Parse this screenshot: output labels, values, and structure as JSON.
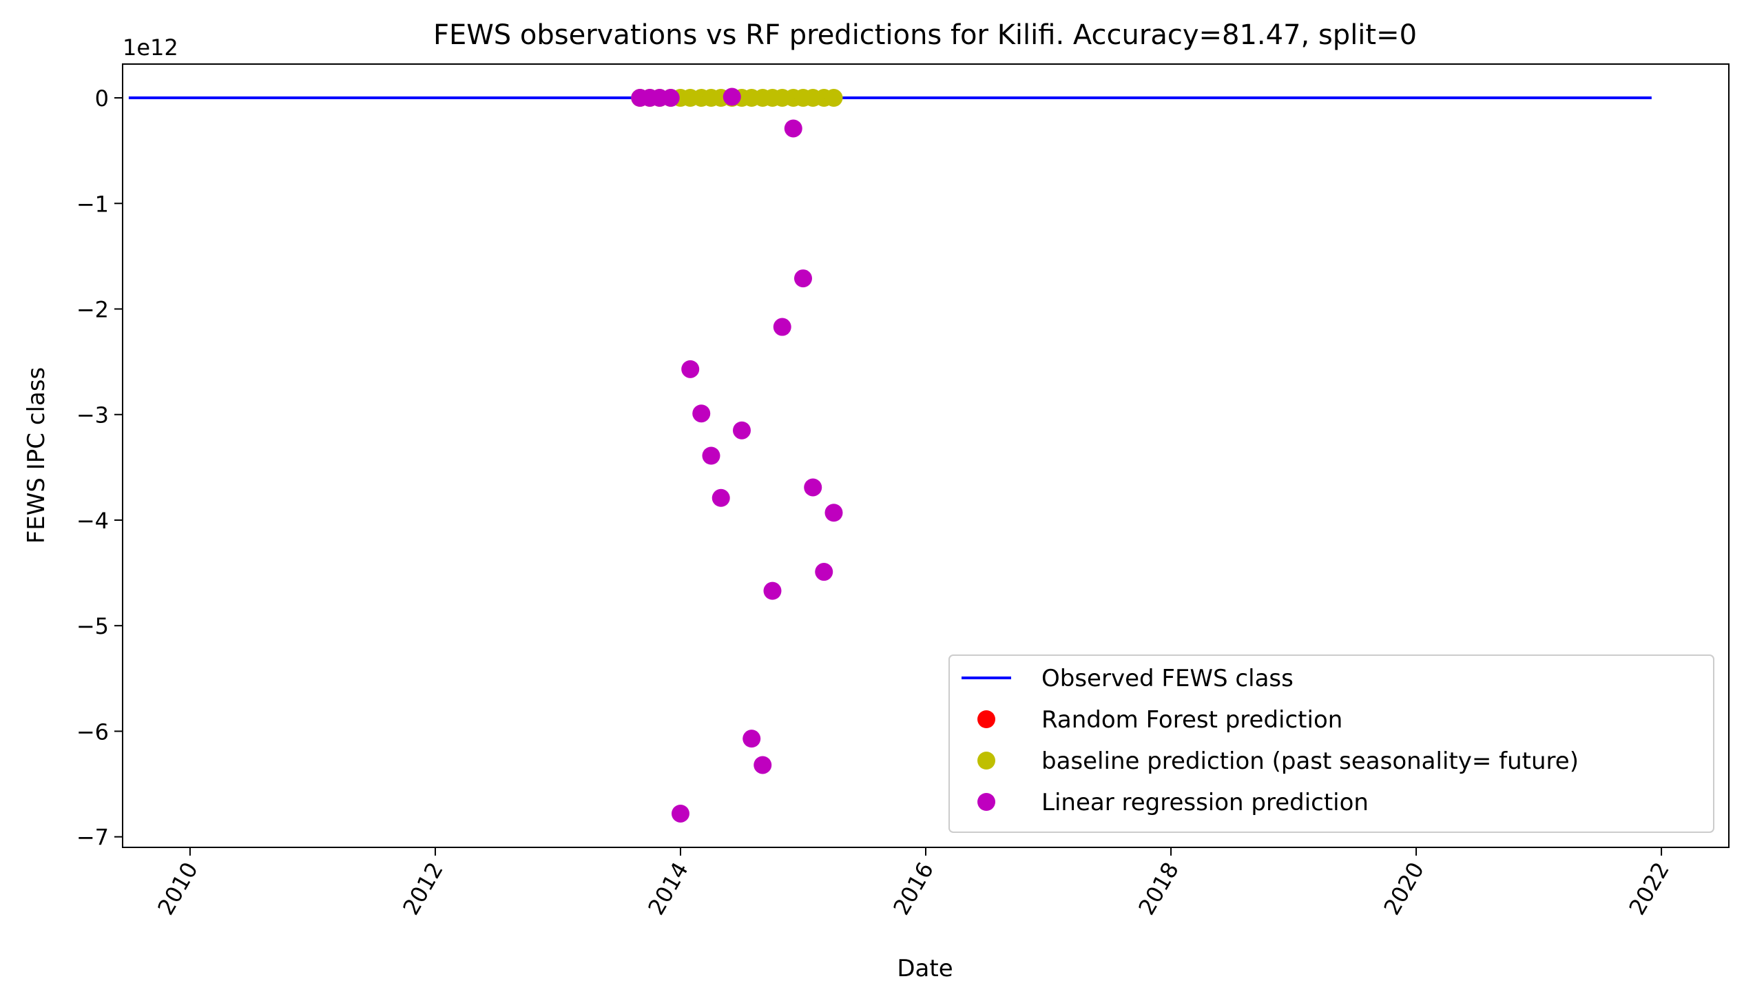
{
  "chart_data": {
    "type": "scatter",
    "title": "FEWS observations vs RF predictions for Kilifi. Accuracy=81.47, split=0",
    "xlabel": "Date",
    "ylabel": "FEWS IPC class",
    "y_multiplier_label": "1e12",
    "xlim": [
      2009.45,
      2022.55
    ],
    "ylim": [
      -7.1,
      0.32
    ],
    "x_ticks": [
      2010,
      2012,
      2014,
      2016,
      2018,
      2020,
      2022
    ],
    "x_tick_labels": [
      "2010",
      "2012",
      "2014",
      "2016",
      "2018",
      "2020",
      "2022"
    ],
    "y_ticks": [
      0,
      -1,
      -2,
      -3,
      -4,
      -5,
      -6,
      -7
    ],
    "y_tick_labels": [
      "0",
      "−1",
      "−2",
      "−3",
      "−4",
      "−5",
      "−6",
      "−7"
    ],
    "grid": false,
    "legend_position": "bottom-right",
    "series": [
      {
        "name": "Observed FEWS class",
        "kind": "line",
        "color": "#0000ff",
        "points": [
          [
            2009.5,
            0
          ],
          [
            2021.92,
            0
          ]
        ]
      },
      {
        "name": "Random Forest prediction",
        "kind": "marker",
        "color": "#ff0000",
        "points": []
      },
      {
        "name": "baseline prediction (past seasonality= future)",
        "kind": "marker",
        "color": "#bfbf00",
        "points": [
          [
            2013.67,
            0
          ],
          [
            2013.75,
            0
          ],
          [
            2013.83,
            0
          ],
          [
            2013.92,
            0
          ],
          [
            2014.0,
            0
          ],
          [
            2014.08,
            0
          ],
          [
            2014.17,
            0
          ],
          [
            2014.25,
            0
          ],
          [
            2014.33,
            0
          ],
          [
            2014.42,
            0
          ],
          [
            2014.5,
            0
          ],
          [
            2014.58,
            0
          ],
          [
            2014.67,
            0
          ],
          [
            2014.75,
            0
          ],
          [
            2014.83,
            0
          ],
          [
            2014.92,
            0
          ],
          [
            2015.0,
            0
          ],
          [
            2015.08,
            0
          ],
          [
            2015.17,
            0
          ],
          [
            2015.25,
            0
          ]
        ]
      },
      {
        "name": "Linear regression prediction",
        "kind": "marker",
        "color": "#bf00bf",
        "points": [
          [
            2013.67,
            0
          ],
          [
            2013.75,
            0
          ],
          [
            2013.83,
            0
          ],
          [
            2013.92,
            0
          ],
          [
            2014.0,
            -6.78
          ],
          [
            2014.08,
            -2.57
          ],
          [
            2014.17,
            -2.99
          ],
          [
            2014.25,
            -3.39
          ],
          [
            2014.33,
            -3.79
          ],
          [
            2014.42,
            0.01
          ],
          [
            2014.5,
            -3.15
          ],
          [
            2014.58,
            -6.07
          ],
          [
            2014.67,
            -6.32
          ],
          [
            2014.75,
            -4.67
          ],
          [
            2014.83,
            -2.17
          ],
          [
            2014.92,
            -0.29
          ],
          [
            2015.0,
            -1.71
          ],
          [
            2015.08,
            -3.69
          ],
          [
            2015.17,
            -4.49
          ],
          [
            2015.25,
            -3.93
          ]
        ]
      }
    ]
  }
}
